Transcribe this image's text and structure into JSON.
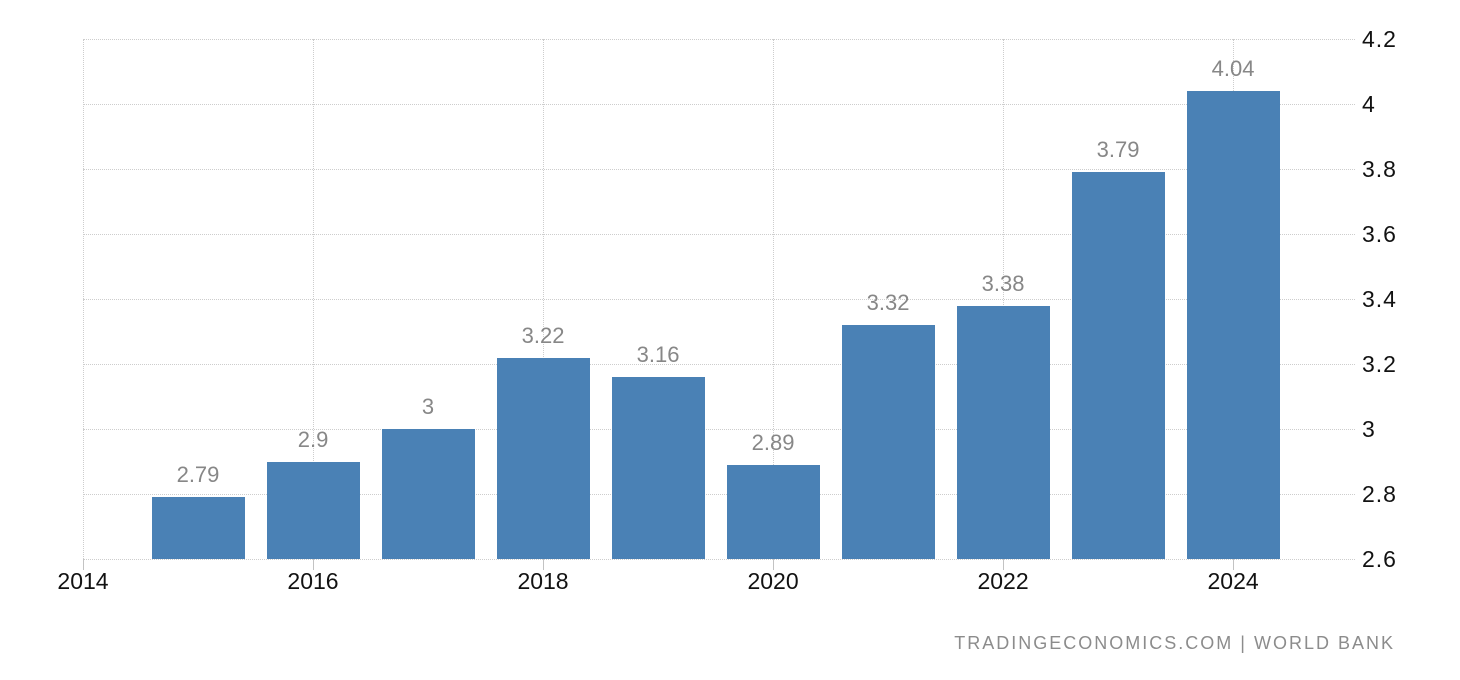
{
  "chart_data": {
    "type": "bar",
    "x": [
      2015,
      2016,
      2017,
      2018,
      2019,
      2020,
      2021,
      2022,
      2023,
      2024
    ],
    "values": [
      2.79,
      2.9,
      3,
      3.22,
      3.16,
      2.89,
      3.32,
      3.38,
      3.79,
      4.04
    ],
    "bar_labels": [
      "2.79",
      "2.9",
      "3",
      "3.22",
      "3.16",
      "2.89",
      "3.32",
      "3.38",
      "3.79",
      "4.04"
    ],
    "x_tick_years": [
      2014,
      2016,
      2018,
      2020,
      2022,
      2024
    ],
    "x_tick_labels": [
      "2014",
      "2016",
      "2018",
      "2020",
      "2022",
      "2024"
    ],
    "y_ticks": [
      2.6,
      2.8,
      3,
      3.2,
      3.4,
      3.6,
      3.8,
      4,
      4.2
    ],
    "y_tick_labels": [
      "2.6",
      "2.8",
      "3",
      "3.2",
      "3.4",
      "3.6",
      "3.8",
      "4",
      "4.2"
    ],
    "ylim": [
      2.6,
      4.2
    ],
    "xlim": [
      2014,
      2025.06
    ],
    "title": "",
    "xlabel": "",
    "ylabel": "",
    "legend": "none",
    "grid": "dotted",
    "y_axis_position": "right",
    "colors": {
      "bar": "#4a81b5",
      "bar_label": "#878787",
      "axis_label": "#121212",
      "gridline": "#cdcdcd"
    }
  },
  "attribution": {
    "text": "TRADINGECONOMICS.COM | WORLD BANK"
  }
}
